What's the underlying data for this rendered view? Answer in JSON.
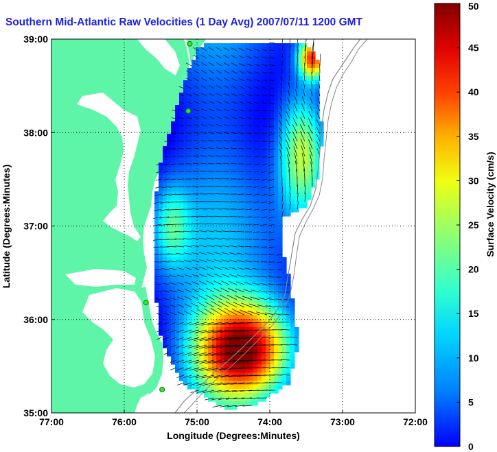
{
  "title": "Southern Mid-Atlantic Raw Velocities (1 Day Avg) 2007/07/11 1200 GMT",
  "x_axis": {
    "label": "Longitude (Degrees:Minutes)",
    "ticks": [
      "77:00",
      "76:00",
      "75:00",
      "74:00",
      "73:00",
      "72:00"
    ],
    "range": [
      -77,
      -72
    ]
  },
  "y_axis": {
    "label": "Latitude (Degrees:Minutes)",
    "ticks": [
      "35:00",
      "36:00",
      "37:00",
      "38:00",
      "39:00"
    ],
    "range": [
      35,
      39
    ]
  },
  "colorbar": {
    "label": "Surface Velocity (cm/s)",
    "range": [
      0,
      50
    ],
    "ticks": [
      "0",
      "5",
      "10",
      "15",
      "20",
      "25",
      "30",
      "35",
      "40",
      "45",
      "50"
    ],
    "colormap": "jet"
  },
  "colors": {
    "title": "#1f1fe6",
    "land": "#5ff5a8",
    "water": "#ffffff",
    "grid": "#000000"
  },
  "stations": [
    {
      "lon": -75.1,
      "lat": 38.95
    },
    {
      "lon": -75.12,
      "lat": 38.23
    },
    {
      "lon": -75.7,
      "lat": 36.18
    },
    {
      "lon": -75.48,
      "lat": 35.25
    }
  ]
}
